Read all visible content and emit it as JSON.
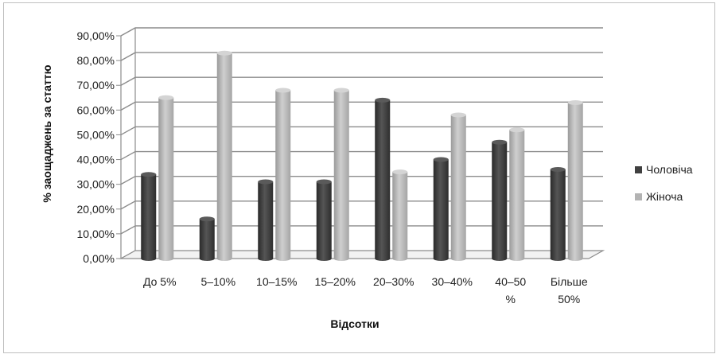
{
  "chart_data": {
    "type": "bar",
    "title": "",
    "xlabel": "Відсотки",
    "ylabel": "% заощаджень за статтю",
    "ylim": [
      0,
      90
    ],
    "yticks": [
      "0,00%",
      "10,00%",
      "20,00%",
      "30,00%",
      "40,00%",
      "50,00%",
      "60,00%",
      "70,00%",
      "80,00%",
      "90,00%"
    ],
    "categories": [
      [
        "До 5%"
      ],
      [
        "5–10%"
      ],
      [
        "10–15%"
      ],
      [
        "15–20%"
      ],
      [
        "20–30%"
      ],
      [
        "30–40%"
      ],
      [
        "40–50",
        "%"
      ],
      [
        "Більше",
        "50%"
      ]
    ],
    "series": [
      {
        "name": "Чоловіча",
        "color": "#404040",
        "values": [
          34,
          16,
          31,
          31,
          64,
          40,
          47,
          36
        ]
      },
      {
        "name": "Жіноча",
        "color": "#b3b3b3",
        "values": [
          65,
          83,
          68,
          68,
          35,
          58,
          52,
          63
        ]
      }
    ],
    "grid": true,
    "legend_position": "right"
  }
}
